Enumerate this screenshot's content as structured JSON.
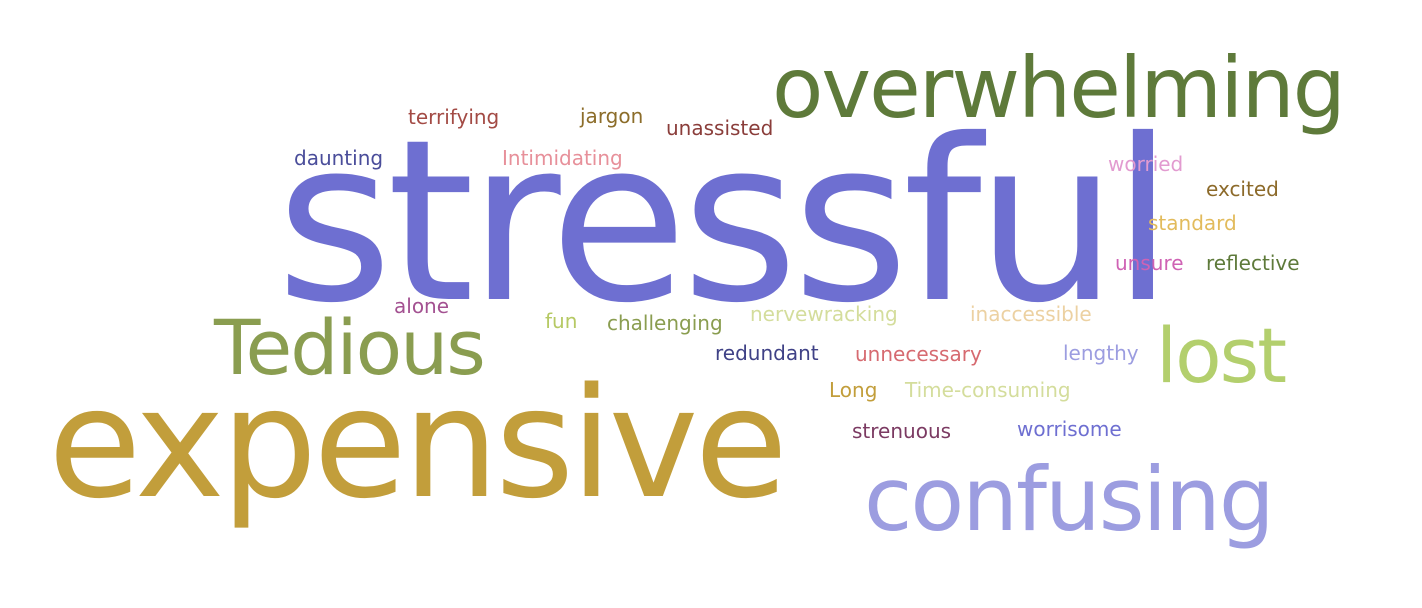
{
  "words": [
    {
      "id": "stressful",
      "text": "stressful",
      "color": "#6e6fd1"
    },
    {
      "id": "expensive",
      "text": "expensive",
      "color": "#c29e3b"
    },
    {
      "id": "overwhelming",
      "text": "overwhelming",
      "color": "#5e7a3a"
    },
    {
      "id": "confusing",
      "text": "confusing",
      "color": "#9c9de0"
    },
    {
      "id": "tedious",
      "text": "Tedious",
      "color": "#8a9d50"
    },
    {
      "id": "lost",
      "text": "lost",
      "color": "#b3cf6d"
    },
    {
      "id": "terrifying",
      "text": "terrifying",
      "color": "#a34b45"
    },
    {
      "id": "jargon",
      "text": "jargon",
      "color": "#8c6d2a"
    },
    {
      "id": "unassisted",
      "text": "unassisted",
      "color": "#8a3d3a"
    },
    {
      "id": "daunting",
      "text": "daunting",
      "color": "#4a4d9a"
    },
    {
      "id": "intimidating",
      "text": "Intimidating",
      "color": "#e7909a"
    },
    {
      "id": "worried",
      "text": "worried",
      "color": "#e29bd0"
    },
    {
      "id": "excited",
      "text": "excited",
      "color": "#8c6a2a"
    },
    {
      "id": "standard",
      "text": "standard",
      "color": "#e2bb5c"
    },
    {
      "id": "unsure",
      "text": "unsure",
      "color": "#cf62b4"
    },
    {
      "id": "reflective",
      "text": "reflective",
      "color": "#5e7a3a"
    },
    {
      "id": "alone",
      "text": "alone",
      "color": "#a35191"
    },
    {
      "id": "fun",
      "text": "fun",
      "color": "#b6c964"
    },
    {
      "id": "challenging",
      "text": "challenging",
      "color": "#8a9d50"
    },
    {
      "id": "nervewracking",
      "text": "nervewracking",
      "color": "#d4dd9c"
    },
    {
      "id": "inaccessible",
      "text": "inaccessible",
      "color": "#ecd1a2"
    },
    {
      "id": "redundant",
      "text": "redundant",
      "color": "#3f4186"
    },
    {
      "id": "unnecessary",
      "text": "unnecessary",
      "color": "#d66a70"
    },
    {
      "id": "lengthy",
      "text": "lengthy",
      "color": "#9c9de0"
    },
    {
      "id": "long",
      "text": "Long",
      "color": "#c29e3b"
    },
    {
      "id": "timeconsuming",
      "text": "Time-consuming",
      "color": "#d4dd9c"
    },
    {
      "id": "strenuous",
      "text": "strenuous",
      "color": "#7b3a62"
    },
    {
      "id": "worrisome",
      "text": "worrisome",
      "color": "#6e6fd1"
    }
  ]
}
